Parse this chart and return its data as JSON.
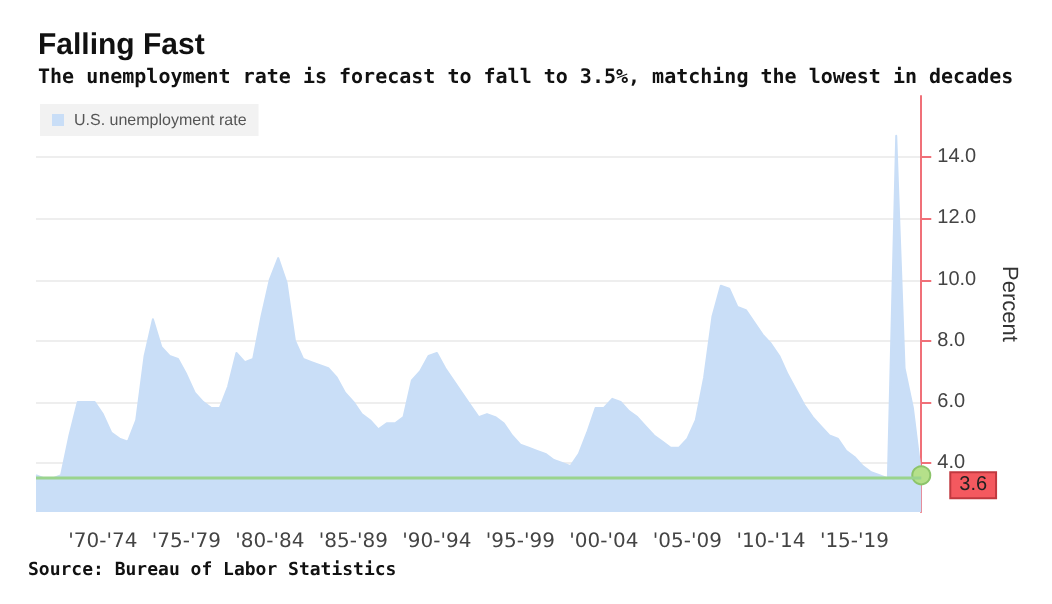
{
  "chart_data": {
    "type": "area",
    "title": "Falling Fast",
    "subtitle": "The unemployment rate is forecast to fall to 3.5%, matching the lowest in decades",
    "ylabel": "Percent",
    "annotations": [
      "Source: Bureau of Labor Statistics"
    ],
    "categories": [
      null,
      null,
      null,
      null,
      null,
      null,
      null,
      null,
      "'70-'74",
      null,
      null,
      null,
      null,
      null,
      null,
      null,
      null,
      null,
      "'75-'79",
      null,
      null,
      null,
      null,
      null,
      null,
      null,
      null,
      null,
      "'80-'84",
      null,
      null,
      null,
      null,
      null,
      null,
      null,
      null,
      null,
      "'85-'89",
      null,
      null,
      null,
      null,
      null,
      null,
      null,
      null,
      null,
      "'90-'94",
      null,
      null,
      null,
      null,
      null,
      null,
      null,
      null,
      null,
      "'95-'99",
      null,
      null,
      null,
      null,
      null,
      null,
      null,
      null,
      null,
      "'00-'04",
      null,
      null,
      null,
      null,
      null,
      null,
      null,
      null,
      null,
      "'05-'09",
      null,
      null,
      null,
      null,
      null,
      null,
      null,
      null,
      null,
      "'10-'14",
      null,
      null,
      null,
      null,
      null,
      null,
      null,
      null,
      null,
      "'15-'19",
      null,
      null,
      null,
      null,
      null,
      null,
      null,
      null
    ],
    "series": [
      {
        "name": "U.S. unemployment rate",
        "color": "#c9def7",
        "values": [
          3.6,
          3.5,
          3.5,
          3.6,
          4.9,
          6.0,
          6.0,
          6.0,
          5.6,
          5.0,
          4.8,
          4.7,
          5.4,
          7.5,
          8.7,
          7.8,
          7.5,
          7.4,
          6.9,
          6.3,
          6.0,
          5.8,
          5.8,
          6.5,
          7.6,
          7.3,
          7.4,
          8.8,
          10.0,
          10.7,
          9.9,
          8.0,
          7.4,
          7.3,
          7.2,
          7.1,
          6.8,
          6.3,
          6.0,
          5.6,
          5.4,
          5.1,
          5.3,
          5.3,
          5.5,
          6.7,
          7.0,
          7.5,
          7.6,
          7.1,
          6.7,
          6.3,
          5.9,
          5.5,
          5.6,
          5.5,
          5.3,
          4.9,
          4.6,
          4.5,
          4.4,
          4.3,
          4.1,
          4.0,
          3.9,
          4.3,
          5.0,
          5.8,
          5.8,
          6.1,
          6.0,
          5.7,
          5.5,
          5.2,
          4.9,
          4.7,
          4.5,
          4.5,
          4.8,
          5.4,
          6.8,
          8.8,
          9.8,
          9.7,
          9.1,
          9.0,
          8.6,
          8.2,
          7.9,
          7.5,
          6.9,
          6.4,
          5.9,
          5.5,
          5.2,
          4.9,
          4.8,
          4.4,
          4.2,
          3.9,
          3.7,
          3.6,
          3.5,
          14.7,
          7.1,
          5.8,
          3.6
        ],
        "value_labels": [
          null,
          null,
          null,
          null,
          null,
          null,
          null,
          null,
          null,
          null,
          null,
          null,
          null,
          null,
          null,
          null,
          null,
          null,
          null,
          null,
          null,
          null,
          null,
          null,
          null,
          null,
          null,
          null,
          null,
          null,
          null,
          null,
          null,
          null,
          null,
          null,
          null,
          null,
          null,
          null,
          null,
          null,
          null,
          null,
          null,
          null,
          null,
          null,
          null,
          null,
          null,
          null,
          null,
          null,
          null,
          null,
          null,
          null,
          null,
          null,
          null,
          null,
          null,
          null,
          null,
          null,
          null,
          null,
          null,
          null,
          null,
          null,
          null,
          null,
          null,
          null,
          null,
          null,
          null,
          null,
          null,
          null,
          null,
          null,
          null,
          null,
          null,
          null,
          null,
          null,
          null,
          null,
          null,
          null,
          null,
          null,
          null,
          null,
          null,
          null,
          null,
          null,
          null,
          null,
          null,
          null,
          "3.6"
        ]
      }
    ],
    "ylim": [
      2.4,
      16
    ],
    "yticks": [
      {
        "value": 4,
        "label": "4.0"
      },
      {
        "value": 6,
        "label": "6.0"
      },
      {
        "value": 8,
        "label": "8.0"
      },
      {
        "value": 10,
        "label": "10.0"
      },
      {
        "value": 12,
        "label": "12.0"
      },
      {
        "value": 14,
        "label": "14.0"
      }
    ],
    "ref_lines": [
      {
        "axis": "y",
        "value": 3.5,
        "color": "#9ad48e"
      }
    ],
    "grid": "y",
    "legend": "top left",
    "marker": "none"
  }
}
